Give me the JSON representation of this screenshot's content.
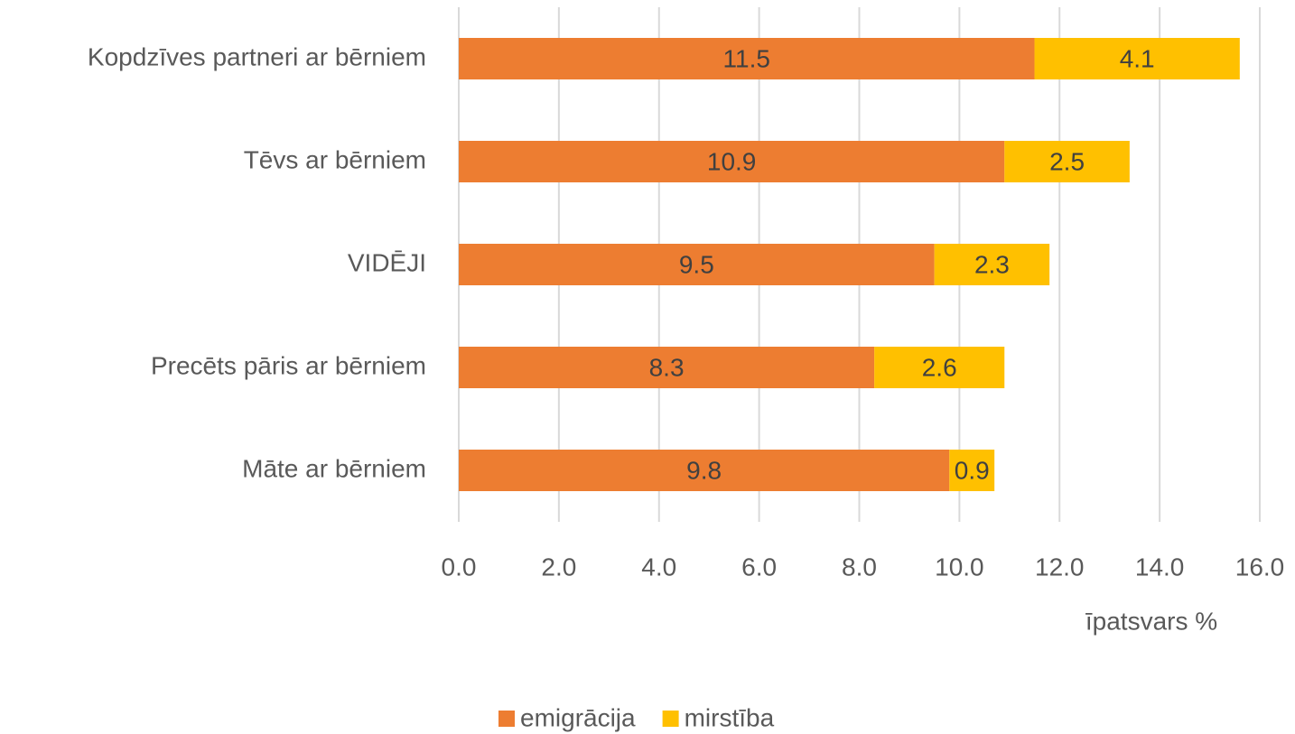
{
  "chart_data": {
    "type": "stacked-barh",
    "categories": [
      "Kopdzīves partneri ar bērniem",
      "Tēvs ar bērniem",
      "VIDĒJI",
      "Precēts pāris ar bērniem",
      "Māte ar bērniem"
    ],
    "series": [
      {
        "name": "emigrācija",
        "color": "#ED7D31",
        "values": [
          11.5,
          10.9,
          9.5,
          8.3,
          9.8
        ]
      },
      {
        "name": "mirstība",
        "color": "#FFC000",
        "values": [
          4.1,
          2.5,
          2.3,
          2.6,
          0.9
        ]
      }
    ],
    "xlim": [
      0,
      16
    ],
    "xticks": [
      {
        "value": 0,
        "label": "0.0"
      },
      {
        "value": 2,
        "label": "2.0"
      },
      {
        "value": 4,
        "label": "4.0"
      },
      {
        "value": 6,
        "label": "6.0"
      },
      {
        "value": 8,
        "label": "8.0"
      },
      {
        "value": 10,
        "label": "10.0"
      },
      {
        "value": 12,
        "label": "12.0"
      },
      {
        "value": 14,
        "label": "14.0"
      },
      {
        "value": 16,
        "label": "16.0"
      }
    ],
    "x_label": "īpatsvars %",
    "grid": true
  }
}
